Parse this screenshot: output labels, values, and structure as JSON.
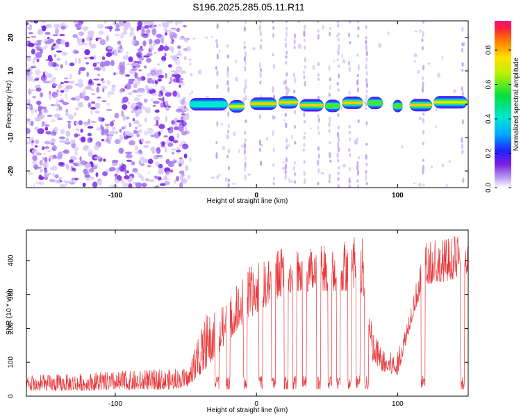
{
  "title": "S196.2025.285.05.11.R11",
  "chart_data": [
    {
      "type": "heatmap",
      "name": "spectrogram",
      "xlabel": "Height of straight line (km)",
      "ylabel": "Frequency (Hz)",
      "xlim": [
        -163,
        150
      ],
      "ylim": [
        -25,
        25
      ],
      "xticks": [
        -100,
        0,
        100
      ],
      "yticks": [
        -20,
        -10,
        0,
        10,
        20
      ],
      "colorbar": {
        "label": "Normalized spectral amplitude",
        "range": [
          0,
          0.97
        ],
        "ticks": [
          0.0,
          0.2,
          0.4,
          0.6,
          0.8
        ]
      },
      "signal_band": {
        "frequency_hz": 0,
        "x_start": -48,
        "x_end": 150,
        "strong_segments": [
          {
            "x0": -48,
            "x1": -20,
            "amp": 0.45
          },
          {
            "x0": -20,
            "x1": -8,
            "amp": 0.75
          },
          {
            "x0": -5,
            "x1": 15,
            "amp": 0.85
          },
          {
            "x0": 15,
            "x1": 30,
            "amp": 0.9
          },
          {
            "x0": 30,
            "x1": 48,
            "amp": 0.9
          },
          {
            "x0": 48,
            "x1": 60,
            "amp": 0.7
          },
          {
            "x0": 60,
            "x1": 76,
            "amp": 0.8
          },
          {
            "x0": 78,
            "x1": 90,
            "amp": 0.6
          },
          {
            "x0": 96,
            "x1": 104,
            "amp": 0.7
          },
          {
            "x0": 108,
            "x1": 125,
            "amp": 0.85
          },
          {
            "x0": 125,
            "x1": 150,
            "amp": 0.75
          }
        ],
        "noise_region": {
          "x0": -163,
          "x1": -48
        }
      }
    },
    {
      "type": "line",
      "name": "snr",
      "xlabel": "Height of straight line (km)",
      "ylabel": "SNR (10 * v/v)",
      "xlim": [
        -163,
        150
      ],
      "ylim": [
        0,
        490
      ],
      "xticks": [
        -100,
        0,
        100
      ],
      "yticks": [
        0,
        100,
        200,
        300,
        400
      ],
      "color": "#e8373a",
      "envelope": [
        {
          "x": -163,
          "base": 15,
          "peak": 60
        },
        {
          "x": -60,
          "base": 20,
          "peak": 80
        },
        {
          "x": -48,
          "base": 30,
          "peak": 80
        },
        {
          "x": -36,
          "base": 80,
          "peak": 240
        },
        {
          "x": -25,
          "base": 130,
          "peak": 260
        },
        {
          "x": -15,
          "base": 190,
          "peak": 320
        },
        {
          "x": -5,
          "base": 230,
          "peak": 380
        },
        {
          "x": 5,
          "base": 260,
          "peak": 400
        },
        {
          "x": 20,
          "base": 300,
          "peak": 440
        },
        {
          "x": 40,
          "base": 310,
          "peak": 440
        },
        {
          "x": 60,
          "base": 310,
          "peak": 450
        },
        {
          "x": 75,
          "base": 300,
          "peak": 480
        },
        {
          "x": 82,
          "base": 100,
          "peak": 200
        },
        {
          "x": 90,
          "base": 70,
          "peak": 130
        },
        {
          "x": 100,
          "base": 60,
          "peak": 130
        },
        {
          "x": 105,
          "base": 140,
          "peak": 200
        },
        {
          "x": 112,
          "base": 250,
          "peak": 320
        },
        {
          "x": 120,
          "base": 330,
          "peak": 450
        },
        {
          "x": 135,
          "base": 340,
          "peak": 470
        },
        {
          "x": 150,
          "base": 360,
          "peak": 470
        }
      ],
      "dropouts": [
        -28,
        -20,
        -8,
        3,
        12,
        21,
        27,
        34,
        44,
        52,
        58,
        66,
        72,
        78,
        118,
        146
      ]
    }
  ]
}
